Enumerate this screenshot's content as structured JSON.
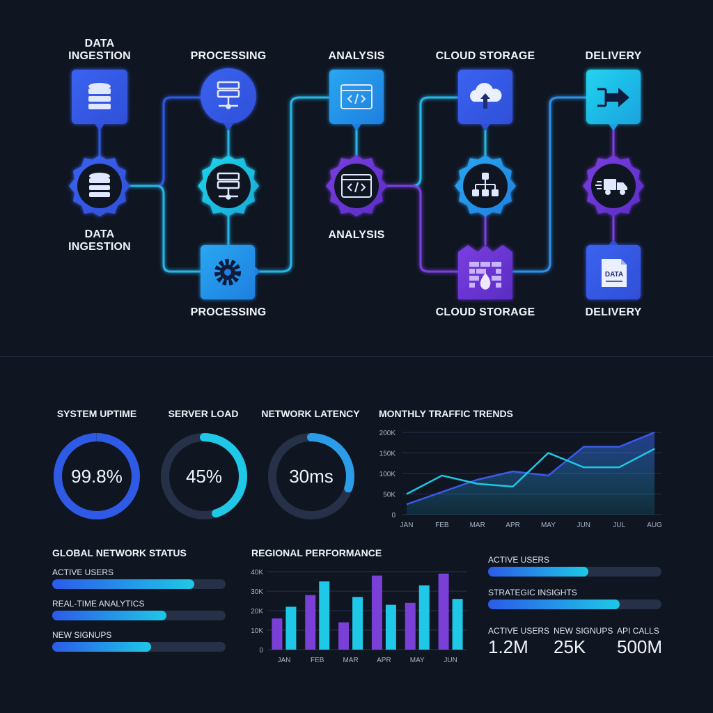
{
  "pipeline": {
    "columns": [
      {
        "top_label": "DATA\nINGESTION",
        "bottom_label": "DATA\nINGESTION",
        "top_icon": "database-icon",
        "hub_icon": "database-icon",
        "bottom_icon": ""
      },
      {
        "top_label": "PROCESSING",
        "bottom_label": "PROCESSING",
        "top_icon": "server-icon",
        "hub_icon": "server-icon",
        "bottom_icon": "gear-icon"
      },
      {
        "top_label": "ANALYSIS",
        "bottom_label": "ANALYSIS",
        "top_icon": "code-window-icon",
        "hub_icon": "code-window-icon",
        "bottom_icon": ""
      },
      {
        "top_label": "CLOUD STORAGE",
        "bottom_label": "CLOUD STORAGE",
        "top_icon": "cloud-upload-icon",
        "hub_icon": "hierarchy-icon",
        "bottom_icon": "firewall-icon"
      },
      {
        "top_label": "DELIVERY",
        "bottom_label": "DELIVERY",
        "top_icon": "arrow-export-icon",
        "hub_icon": "delivery-truck-icon",
        "bottom_icon": "data-file-icon"
      }
    ],
    "data_file_text": "DATA"
  },
  "gauges": [
    {
      "title": "SYSTEM UPTIME",
      "value": "99.8%",
      "fill": 0.998
    },
    {
      "title": "SERVER LOAD",
      "value": "45%",
      "fill": 0.45
    },
    {
      "title": "NETWORK LATENCY",
      "value": "30ms",
      "fill": 0.3
    }
  ],
  "traffic": {
    "title": "MONTHLY TRAFFIC TRENDS"
  },
  "network_status": {
    "title": "GLOBAL NETWORK STATUS",
    "items": [
      {
        "label": "ACTIVE USERS",
        "fill": 0.82
      },
      {
        "label": "REAL-TIME ANALYTICS",
        "fill": 0.66
      },
      {
        "label": "NEW SIGNUPS",
        "fill": 0.57
      }
    ]
  },
  "regional": {
    "title": "REGIONAL PERFORMANCE"
  },
  "right_panel": {
    "bars": [
      {
        "label": "ACTIVE USERS",
        "fill": 0.58
      },
      {
        "label": "STRATEGIC INSIGHTS",
        "fill": 0.76
      }
    ],
    "stats": [
      {
        "label": "ACTIVE USERS",
        "value": "1.2M"
      },
      {
        "label": "NEW SIGNUPS",
        "value": "25K"
      },
      {
        "label": "API CALLS",
        "value": "500M"
      }
    ]
  },
  "chart_data": [
    {
      "type": "area",
      "title": "MONTHLY TRAFFIC TRENDS",
      "categories": [
        "JAN",
        "FEB",
        "MAR",
        "APR",
        "MAY",
        "JUN",
        "JUL",
        "AUG"
      ],
      "yticks": [
        "0",
        "50K",
        "100K",
        "150K",
        "200K"
      ],
      "ylim": [
        0,
        200000
      ],
      "grid": true,
      "series": [
        {
          "values": [
            25000,
            55000,
            85000,
            105000,
            95000,
            165000,
            165000,
            200000
          ],
          "color": "#3a5ae8"
        },
        {
          "values": [
            50000,
            95000,
            75000,
            68000,
            150000,
            115000,
            115000,
            160000
          ],
          "color": "#1ec8e6"
        }
      ]
    },
    {
      "type": "bar",
      "title": "REGIONAL PERFORMANCE",
      "categories": [
        "JAN",
        "FEB",
        "MAR",
        "APR",
        "MAY",
        "JUN"
      ],
      "yticks": [
        "0",
        "10K",
        "20K",
        "30K",
        "40K"
      ],
      "ylim": [
        0,
        40000
      ],
      "grid": true,
      "series": [
        {
          "values": [
            16000,
            28000,
            14000,
            38000,
            24000,
            39000
          ],
          "color": "#7a3fd6"
        },
        {
          "values": [
            22000,
            35000,
            27000,
            23000,
            33000,
            26000
          ],
          "color": "#1ec8e6"
        }
      ]
    }
  ]
}
